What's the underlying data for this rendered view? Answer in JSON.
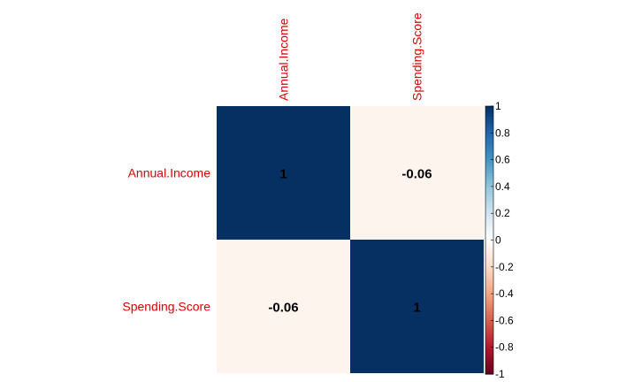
{
  "chart_data": {
    "type": "heatmap",
    "variables": [
      "Annual.Income",
      "Spending.Score"
    ],
    "matrix": [
      [
        1,
        -0.06
      ],
      [
        -0.06,
        1
      ]
    ],
    "cell_labels": [
      [
        "1",
        "-0.06"
      ],
      [
        "-0.06",
        "1"
      ]
    ],
    "color_scale": {
      "min": -1,
      "max": 1,
      "ticks": [
        "1",
        "0.8",
        "0.6",
        "0.4",
        "0.2",
        "0",
        "-0.2",
        "-0.4",
        "-0.6",
        "-0.8",
        "-1"
      ],
      "low_color": "#67001f",
      "mid_color": "#ffffff",
      "high_color": "#053061"
    },
    "label_color": "#e00000",
    "legend_placement": "right"
  }
}
